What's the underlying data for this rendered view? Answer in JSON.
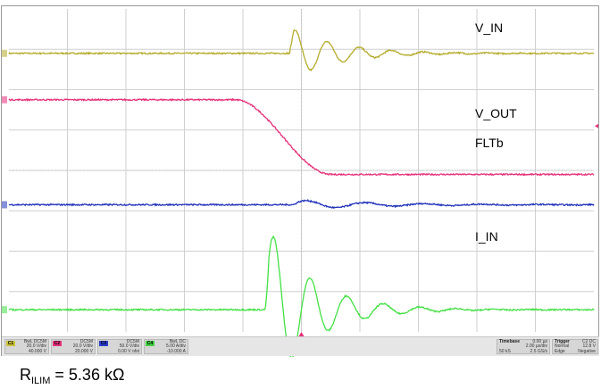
{
  "colors": {
    "vin": "#b5ab2a",
    "vout": "#e6307a",
    "fltb": "#2233bb",
    "iin": "#44e044",
    "grid": "#cfcfcf",
    "grid_dot": "#bdbdbd",
    "frame": "#9a9a9a"
  },
  "chart_data": {
    "type": "line",
    "title": "",
    "xlabel": "",
    "ylabel": "",
    "x_unit": "µs",
    "xlim": [
      -20,
      20
    ],
    "ylim_div": [
      -4,
      4
    ],
    "grid": true,
    "series": [
      {
        "name": "V_IN",
        "channel": "C1",
        "color": "#b5ab2a",
        "kind": "ring",
        "base": 2.9,
        "amp": 0.65,
        "t0": -0.8,
        "decay": 3.2,
        "period": 2.2,
        "phase": 0.5
      },
      {
        "name": "V_OUT",
        "channel": "C2",
        "color": "#e6307a",
        "kind": "step",
        "high": 1.75,
        "low": -0.1,
        "t_start": -4.5,
        "t_end": 2.0
      },
      {
        "name": "FLTb",
        "channel": "C3",
        "color": "#2233bb",
        "kind": "ring",
        "base": -0.85,
        "amp": 0.12,
        "t0": -0.6,
        "decay": 6.0,
        "period": 4.0,
        "phase": 0
      },
      {
        "name": "I_IN",
        "channel": "C4",
        "color": "#44e044",
        "kind": "ring",
        "base": -3.45,
        "amp": 2.2,
        "t0": -2.5,
        "decay": 3.0,
        "period": 2.5,
        "phase": 0.0
      }
    ],
    "labels": [
      "V_IN",
      "V_OUT",
      "FLTb",
      "I_IN"
    ]
  },
  "status": {
    "channels": [
      {
        "tag": "C1",
        "color": "#c9c23a",
        "line1": "BwL DC5M",
        "line2": "20.0 V/div",
        "line3": "40.000 V"
      },
      {
        "tag": "C2",
        "color": "#e6307a",
        "line1": "DC5M",
        "line2": "20.0 V/div",
        "line3": "20.000 V"
      },
      {
        "tag": "C3",
        "color": "#2a3bcc",
        "line1": "DC5M",
        "line2": "50.0 V/div",
        "line3": "0.00 V ofst"
      },
      {
        "tag": "C4",
        "color": "#44d044",
        "line1": "BwL DC",
        "line2": "5.00 A/div",
        "line3": "-10.000 A"
      }
    ],
    "timebase": {
      "header": "Timebase",
      "value": "0.00 µs",
      "per_div": "2.00 µs/div",
      "samples": "50 kS",
      "rate": "2.5 GS/s"
    },
    "trigger": {
      "header": "Trigger",
      "source": "C2 DC",
      "mode": "Normal",
      "level": "12.8 V",
      "type": "Edge",
      "slope": "Negative"
    }
  },
  "caption": {
    "prefix": "R",
    "subscript": "ILIM",
    "suffix": " = 5.36 kΩ"
  }
}
